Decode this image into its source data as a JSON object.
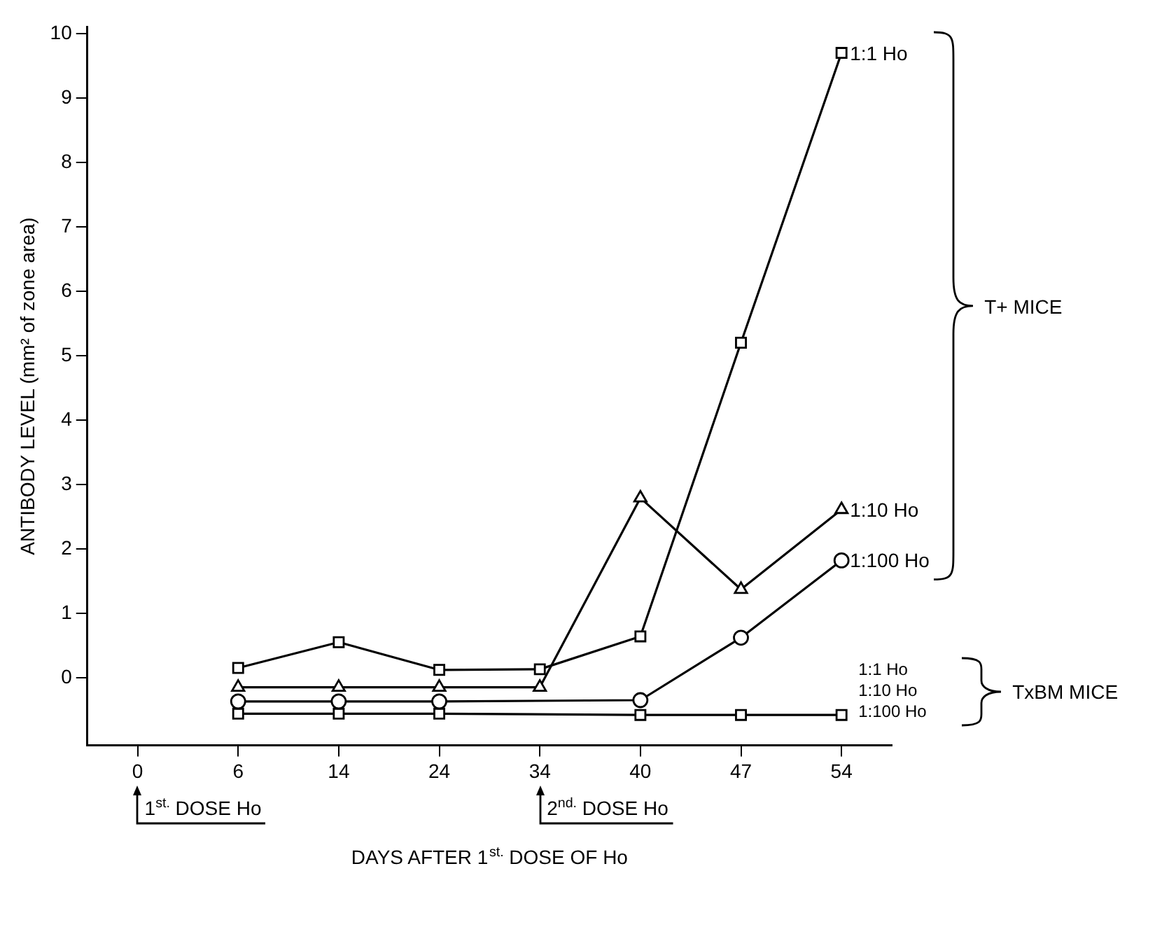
{
  "chart_data": {
    "type": "line",
    "xlabel": "DAYS AFTER 1$^{st.}$ DOSE OF Ho",
    "ylabel": "ANTIBODY LEVEL (mm² of zone area)",
    "categories": [
      "0",
      "6",
      "14",
      "24",
      "34",
      "40",
      "47",
      "54"
    ],
    "series": [
      {
        "name": "1:1 Ho",
        "color": "#000000",
        "marker": "square",
        "values": [
          null,
          0.15,
          0.55,
          0.12,
          0.13,
          0.64,
          5.2,
          9.7
        ]
      },
      {
        "name": "1:10 Ho",
        "color": "#000000",
        "marker": "triangle",
        "values": [
          null,
          -0.15,
          -0.15,
          -0.15,
          -0.15,
          2.79,
          1.37,
          2.61
        ]
      },
      {
        "name": "1:100 Ho",
        "color": "#000000",
        "marker": "circle",
        "values": [
          null,
          -0.37,
          -0.37,
          -0.37,
          null,
          -0.35,
          0.62,
          1.82
        ]
      },
      {
        "color": "#000000",
        "marker": "square",
        "values": [
          null,
          -0.56,
          -0.56,
          -0.56,
          null,
          -0.58,
          -0.58,
          -0.58
        ]
      }
    ],
    "ylim": [
      -1.05,
      10.1
    ],
    "yticks": [
      0,
      1,
      2,
      3,
      4,
      5,
      6,
      7,
      8,
      9,
      10
    ],
    "grid": false,
    "legend": false,
    "line_style": "solid",
    "annotations": [
      "T+ MICE",
      "TxBM MICE",
      "1:1 Ho",
      "1:10 Ho",
      "1:100 Ho",
      "1$^{st.}$ DOSE Ho",
      "2$^{nd.}$ DOSE Ho"
    ]
  }
}
